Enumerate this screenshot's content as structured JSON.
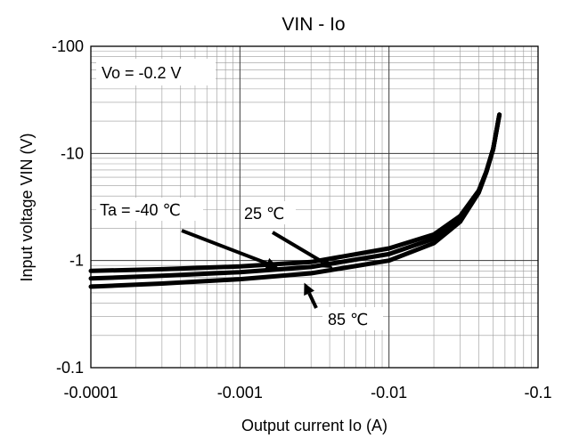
{
  "chart_data": {
    "type": "line",
    "title": "VIN - Io",
    "xlabel": "Output current Io (A)",
    "ylabel": "Input voltage VIN (V)",
    "x_scale": "log",
    "y_scale": "log",
    "x_axis_direction": "negative values, magnitude increases to the right",
    "y_axis_direction": "negative values, magnitude increases upward",
    "xlim": [
      -0.0001,
      -0.1
    ],
    "ylim": [
      -0.1,
      -100
    ],
    "x_ticks": [
      -0.0001,
      -0.001,
      -0.01,
      -0.1
    ],
    "x_tick_labels": [
      "-0.0001",
      "-0.001",
      "-0.01",
      "-0.1"
    ],
    "y_ticks": [
      -0.1,
      -1,
      -10,
      -100
    ],
    "y_tick_labels": [
      "-0.1",
      "-1",
      "-10",
      "-100"
    ],
    "grid": true,
    "legend": "none",
    "line_color": "#000000",
    "series": [
      {
        "label": "Ta = -40 ℃",
        "x": [
          -0.0001,
          -0.0003,
          -0.001,
          -0.003,
          -0.01,
          -0.02,
          -0.03,
          -0.04,
          -0.045,
          -0.05,
          -0.055
        ],
        "y": [
          -0.8,
          -0.83,
          -0.88,
          -0.97,
          -1.3,
          -1.75,
          -2.6,
          -4.5,
          -6.8,
          -11,
          -23
        ]
      },
      {
        "label": "25 ℃",
        "x": [
          -0.0001,
          -0.0003,
          -0.001,
          -0.003,
          -0.01,
          -0.02,
          -0.03,
          -0.04,
          -0.045,
          -0.05,
          -0.055
        ],
        "y": [
          -0.68,
          -0.72,
          -0.78,
          -0.87,
          -1.15,
          -1.6,
          -2.45,
          -4.4,
          -6.8,
          -11,
          -23
        ]
      },
      {
        "label": "85 ℃",
        "x": [
          -0.0001,
          -0.0003,
          -0.001,
          -0.003,
          -0.01,
          -0.02,
          -0.03,
          -0.04,
          -0.045,
          -0.05,
          -0.055
        ],
        "y": [
          -0.57,
          -0.61,
          -0.67,
          -0.76,
          -1.0,
          -1.45,
          -2.3,
          -4.3,
          -6.7,
          -11,
          -23
        ]
      }
    ],
    "annotations": [
      {
        "text": "Vo = -0.2 V"
      },
      {
        "text": "Ta = -40 ℃",
        "points_to_series": 0,
        "arrow_target": {
          "x": -0.0018,
          "y": -0.86
        }
      },
      {
        "text": "25 ℃",
        "points_to_series": 1,
        "arrow_target": {
          "x": -0.0042,
          "y": -0.85
        }
      },
      {
        "text": "85 ℃",
        "points_to_series": 2,
        "arrow_target": {
          "x": -0.0027,
          "y": -0.62
        }
      }
    ]
  }
}
